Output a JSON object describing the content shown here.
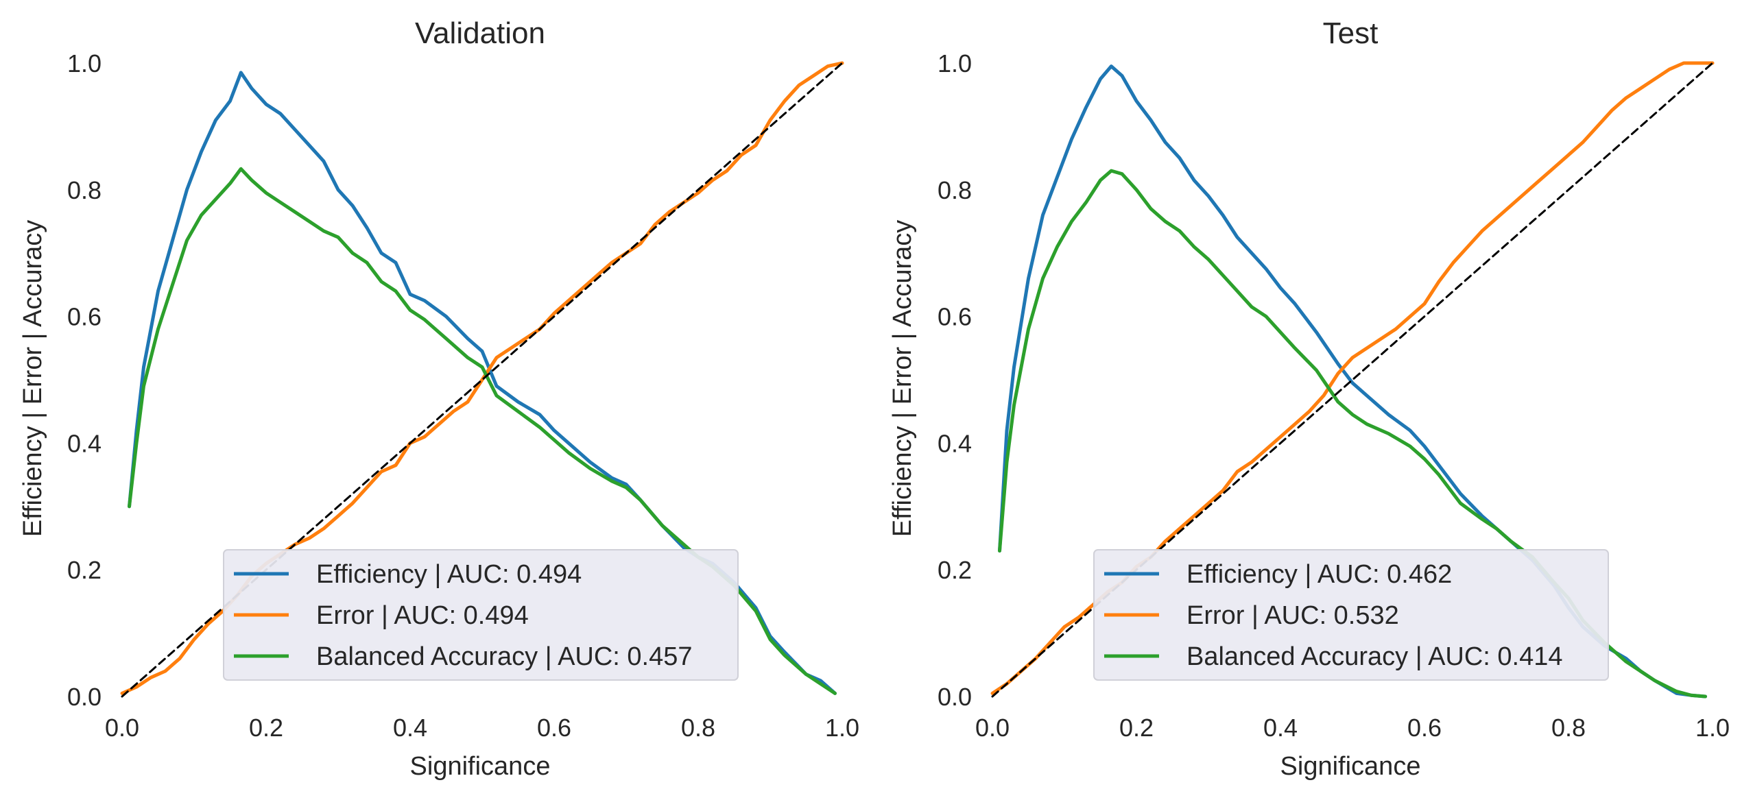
{
  "figure": {
    "background": "#ffffff",
    "panel_background": "#ffffff",
    "legend_background": "#eaeaf2",
    "legend_edge": "#d0d0d8",
    "series_colors": {
      "efficiency": "#1f77b4",
      "error": "#ff7f0e",
      "accuracy": "#2ca02c",
      "diagonal": "#000000"
    }
  },
  "chart_data": [
    {
      "type": "line",
      "title": "Validation",
      "xlabel": "Significance",
      "ylabel": "Efficiency | Error | Accuracy",
      "xlim": [
        0.0,
        1.0
      ],
      "ylim": [
        0.0,
        1.0
      ],
      "xticks": [
        "0.0",
        "0.2",
        "0.4",
        "0.6",
        "0.8",
        "1.0"
      ],
      "yticks": [
        "0.0",
        "0.2",
        "0.4",
        "0.6",
        "0.8",
        "1.0"
      ],
      "grid": false,
      "legend_position": "lower center",
      "series": [
        {
          "name": "Efficiency | AUC: 0.494",
          "color": "#1f77b4",
          "x": [
            0.01,
            0.02,
            0.03,
            0.05,
            0.07,
            0.09,
            0.11,
            0.13,
            0.15,
            0.165,
            0.18,
            0.2,
            0.22,
            0.24,
            0.26,
            0.28,
            0.3,
            0.32,
            0.34,
            0.36,
            0.38,
            0.4,
            0.42,
            0.45,
            0.48,
            0.5,
            0.52,
            0.55,
            0.58,
            0.6,
            0.62,
            0.65,
            0.68,
            0.7,
            0.72,
            0.75,
            0.78,
            0.8,
            0.82,
            0.85,
            0.88,
            0.9,
            0.92,
            0.95,
            0.97,
            0.99
          ],
          "y": [
            0.3,
            0.42,
            0.52,
            0.64,
            0.72,
            0.8,
            0.86,
            0.91,
            0.94,
            0.985,
            0.96,
            0.935,
            0.92,
            0.895,
            0.87,
            0.845,
            0.8,
            0.775,
            0.74,
            0.7,
            0.685,
            0.635,
            0.625,
            0.6,
            0.565,
            0.545,
            0.49,
            0.465,
            0.445,
            0.42,
            0.4,
            0.37,
            0.345,
            0.335,
            0.31,
            0.27,
            0.235,
            0.22,
            0.21,
            0.18,
            0.14,
            0.095,
            0.07,
            0.035,
            0.025,
            0.005
          ]
        },
        {
          "name": "Error | AUC: 0.494",
          "color": "#ff7f0e",
          "x": [
            0.0,
            0.02,
            0.04,
            0.06,
            0.08,
            0.1,
            0.12,
            0.14,
            0.16,
            0.18,
            0.2,
            0.22,
            0.24,
            0.26,
            0.28,
            0.3,
            0.32,
            0.34,
            0.36,
            0.38,
            0.4,
            0.42,
            0.44,
            0.46,
            0.48,
            0.5,
            0.52,
            0.54,
            0.56,
            0.58,
            0.6,
            0.62,
            0.64,
            0.66,
            0.68,
            0.7,
            0.72,
            0.74,
            0.76,
            0.78,
            0.8,
            0.82,
            0.84,
            0.86,
            0.88,
            0.9,
            0.92,
            0.94,
            0.96,
            0.98,
            1.0
          ],
          "y": [
            0.005,
            0.015,
            0.03,
            0.04,
            0.06,
            0.09,
            0.115,
            0.135,
            0.16,
            0.19,
            0.21,
            0.225,
            0.24,
            0.25,
            0.265,
            0.285,
            0.305,
            0.33,
            0.355,
            0.365,
            0.4,
            0.41,
            0.43,
            0.45,
            0.465,
            0.5,
            0.535,
            0.55,
            0.565,
            0.58,
            0.605,
            0.625,
            0.645,
            0.665,
            0.685,
            0.7,
            0.715,
            0.745,
            0.765,
            0.78,
            0.795,
            0.815,
            0.83,
            0.855,
            0.87,
            0.91,
            0.94,
            0.965,
            0.98,
            0.995,
            1.0
          ]
        },
        {
          "name": "Balanced Accuracy | AUC: 0.457",
          "color": "#2ca02c",
          "x": [
            0.01,
            0.02,
            0.03,
            0.05,
            0.07,
            0.09,
            0.11,
            0.13,
            0.15,
            0.165,
            0.18,
            0.2,
            0.22,
            0.24,
            0.26,
            0.28,
            0.3,
            0.32,
            0.34,
            0.36,
            0.38,
            0.4,
            0.42,
            0.45,
            0.48,
            0.5,
            0.52,
            0.55,
            0.58,
            0.6,
            0.62,
            0.65,
            0.68,
            0.7,
            0.72,
            0.75,
            0.78,
            0.8,
            0.82,
            0.85,
            0.88,
            0.9,
            0.92,
            0.95,
            0.97,
            0.99
          ],
          "y": [
            0.3,
            0.4,
            0.49,
            0.58,
            0.65,
            0.72,
            0.76,
            0.785,
            0.81,
            0.833,
            0.815,
            0.795,
            0.78,
            0.765,
            0.75,
            0.735,
            0.725,
            0.7,
            0.685,
            0.655,
            0.64,
            0.61,
            0.595,
            0.565,
            0.535,
            0.52,
            0.475,
            0.45,
            0.425,
            0.405,
            0.385,
            0.36,
            0.34,
            0.33,
            0.31,
            0.27,
            0.24,
            0.22,
            0.205,
            0.175,
            0.135,
            0.09,
            0.065,
            0.035,
            0.02,
            0.005
          ]
        },
        {
          "name": "",
          "color": "#000000",
          "dashed": true,
          "x": [
            0.0,
            1.0
          ],
          "y": [
            0.0,
            1.0
          ]
        }
      ]
    },
    {
      "type": "line",
      "title": "Test",
      "xlabel": "Significance",
      "ylabel": "Efficiency | Error | Accuracy",
      "xlim": [
        0.0,
        1.0
      ],
      "ylim": [
        0.0,
        1.0
      ],
      "xticks": [
        "0.0",
        "0.2",
        "0.4",
        "0.6",
        "0.8",
        "1.0"
      ],
      "yticks": [
        "0.0",
        "0.2",
        "0.4",
        "0.6",
        "0.8",
        "1.0"
      ],
      "grid": false,
      "legend_position": "lower center",
      "series": [
        {
          "name": "Efficiency | AUC: 0.462",
          "color": "#1f77b4",
          "x": [
            0.01,
            0.02,
            0.03,
            0.05,
            0.07,
            0.09,
            0.11,
            0.13,
            0.15,
            0.165,
            0.18,
            0.2,
            0.22,
            0.24,
            0.26,
            0.28,
            0.3,
            0.32,
            0.34,
            0.36,
            0.38,
            0.4,
            0.42,
            0.45,
            0.48,
            0.5,
            0.52,
            0.55,
            0.58,
            0.6,
            0.62,
            0.65,
            0.68,
            0.7,
            0.72,
            0.75,
            0.78,
            0.8,
            0.82,
            0.85,
            0.88,
            0.9,
            0.92,
            0.95,
            0.97,
            0.99
          ],
          "y": [
            0.23,
            0.42,
            0.52,
            0.66,
            0.76,
            0.82,
            0.88,
            0.93,
            0.975,
            0.995,
            0.98,
            0.94,
            0.91,
            0.875,
            0.85,
            0.815,
            0.79,
            0.76,
            0.725,
            0.7,
            0.675,
            0.645,
            0.62,
            0.575,
            0.525,
            0.495,
            0.475,
            0.445,
            0.42,
            0.395,
            0.365,
            0.32,
            0.285,
            0.265,
            0.245,
            0.215,
            0.175,
            0.14,
            0.11,
            0.08,
            0.06,
            0.04,
            0.025,
            0.005,
            0.002,
            0.0
          ]
        },
        {
          "name": "Error | AUC: 0.532",
          "color": "#ff7f0e",
          "x": [
            0.0,
            0.02,
            0.04,
            0.06,
            0.08,
            0.1,
            0.12,
            0.14,
            0.16,
            0.18,
            0.2,
            0.22,
            0.24,
            0.26,
            0.28,
            0.3,
            0.32,
            0.34,
            0.36,
            0.38,
            0.4,
            0.42,
            0.44,
            0.46,
            0.48,
            0.5,
            0.52,
            0.54,
            0.56,
            0.58,
            0.6,
            0.62,
            0.64,
            0.66,
            0.68,
            0.7,
            0.72,
            0.74,
            0.76,
            0.78,
            0.8,
            0.82,
            0.84,
            0.86,
            0.88,
            0.9,
            0.92,
            0.94,
            0.96,
            0.98,
            1.0
          ],
          "y": [
            0.005,
            0.02,
            0.04,
            0.06,
            0.085,
            0.11,
            0.125,
            0.145,
            0.165,
            0.18,
            0.205,
            0.22,
            0.245,
            0.265,
            0.285,
            0.305,
            0.325,
            0.355,
            0.37,
            0.39,
            0.41,
            0.43,
            0.45,
            0.475,
            0.51,
            0.535,
            0.55,
            0.565,
            0.58,
            0.6,
            0.62,
            0.655,
            0.685,
            0.71,
            0.735,
            0.755,
            0.775,
            0.795,
            0.815,
            0.835,
            0.855,
            0.875,
            0.9,
            0.925,
            0.945,
            0.96,
            0.975,
            0.99,
            1.0,
            1.0,
            1.0
          ]
        },
        {
          "name": "Balanced Accuracy | AUC: 0.414",
          "color": "#2ca02c",
          "x": [
            0.01,
            0.02,
            0.03,
            0.05,
            0.07,
            0.09,
            0.11,
            0.13,
            0.15,
            0.165,
            0.18,
            0.2,
            0.22,
            0.24,
            0.26,
            0.28,
            0.3,
            0.32,
            0.34,
            0.36,
            0.38,
            0.4,
            0.42,
            0.45,
            0.48,
            0.5,
            0.52,
            0.55,
            0.58,
            0.6,
            0.62,
            0.65,
            0.68,
            0.7,
            0.72,
            0.75,
            0.78,
            0.8,
            0.82,
            0.85,
            0.88,
            0.9,
            0.92,
            0.95,
            0.97,
            0.99
          ],
          "y": [
            0.23,
            0.37,
            0.46,
            0.58,
            0.66,
            0.71,
            0.75,
            0.78,
            0.815,
            0.83,
            0.825,
            0.8,
            0.77,
            0.75,
            0.735,
            0.71,
            0.69,
            0.665,
            0.64,
            0.615,
            0.6,
            0.575,
            0.55,
            0.515,
            0.465,
            0.445,
            0.43,
            0.415,
            0.395,
            0.375,
            0.35,
            0.305,
            0.28,
            0.265,
            0.245,
            0.22,
            0.18,
            0.155,
            0.12,
            0.085,
            0.055,
            0.04,
            0.025,
            0.008,
            0.002,
            0.0
          ]
        },
        {
          "name": "",
          "color": "#000000",
          "dashed": true,
          "x": [
            0.0,
            1.0
          ],
          "y": [
            0.0,
            1.0
          ]
        }
      ]
    }
  ]
}
